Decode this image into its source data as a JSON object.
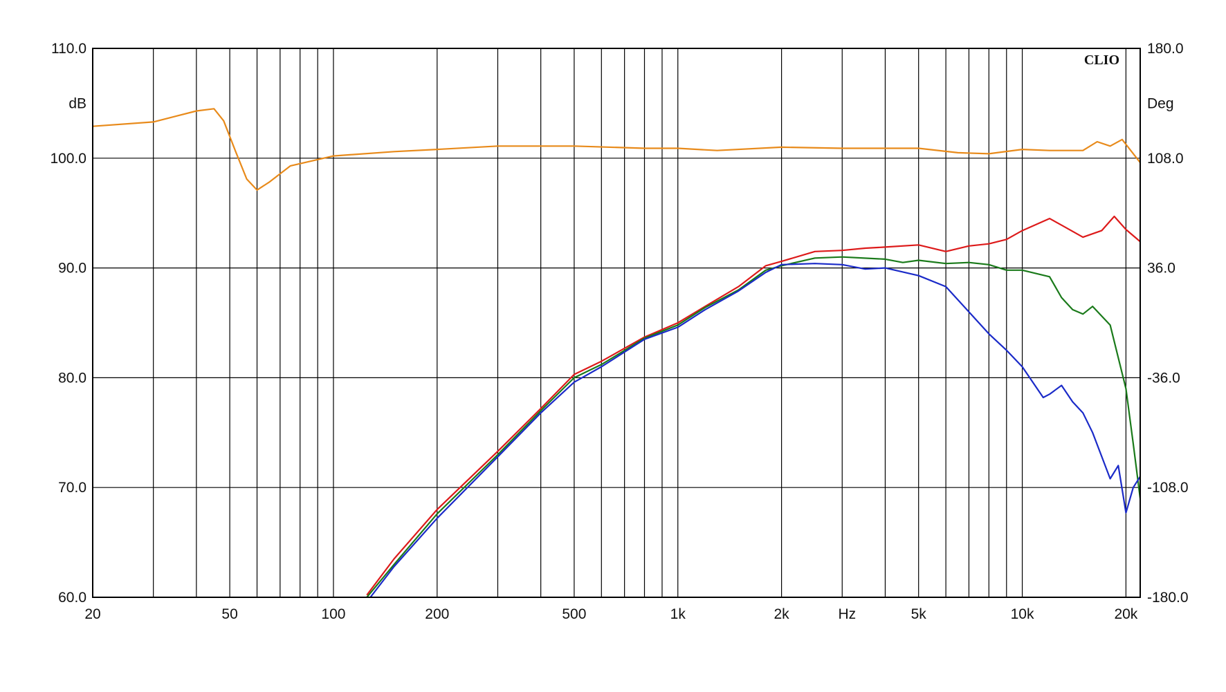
{
  "chart_data": {
    "type": "line",
    "brand": "CLIO",
    "x_scale": "log",
    "xlim": [
      20,
      22000
    ],
    "ylim_left": [
      60,
      110
    ],
    "ylim_right": [
      -180,
      180
    ],
    "left_axis_unit": "dB",
    "right_axis_unit": "Deg",
    "x_axis_unit": "Hz",
    "grid": true,
    "y_ticks_left": [
      {
        "value": 60,
        "label": "60.0"
      },
      {
        "value": 70,
        "label": "70.0"
      },
      {
        "value": 80,
        "label": "80.0"
      },
      {
        "value": 90,
        "label": "90.0"
      },
      {
        "value": 100,
        "label": "100.0"
      },
      {
        "value": 110,
        "label": "110.0"
      }
    ],
    "y_ticks_right": [
      {
        "value": -180,
        "label": "-180.0"
      },
      {
        "value": -108,
        "label": "-108.0"
      },
      {
        "value": -36,
        "label": "-36.0"
      },
      {
        "value": 36,
        "label": "36.0"
      },
      {
        "value": 108,
        "label": "108.0"
      },
      {
        "value": 180,
        "label": "180.0"
      }
    ],
    "x_ticks": [
      {
        "value": 20,
        "label": "20"
      },
      {
        "value": 50,
        "label": "50"
      },
      {
        "value": 100,
        "label": "100"
      },
      {
        "value": 200,
        "label": "200"
      },
      {
        "value": 500,
        "label": "500"
      },
      {
        "value": 1000,
        "label": "1k"
      },
      {
        "value": 2000,
        "label": "2k"
      },
      {
        "value": 5000,
        "label": "5k"
      },
      {
        "value": 10000,
        "label": "10k"
      },
      {
        "value": 20000,
        "label": "20k"
      }
    ],
    "x_grid": [
      20,
      30,
      40,
      50,
      60,
      70,
      80,
      90,
      100,
      200,
      300,
      400,
      500,
      600,
      700,
      800,
      900,
      1000,
      2000,
      3000,
      4000,
      5000,
      6000,
      7000,
      8000,
      9000,
      10000,
      20000
    ],
    "series": [
      {
        "color": "#e88a1a",
        "x": [
          20,
          30,
          40,
          45,
          48,
          52,
          56,
          60,
          65,
          75,
          100,
          150,
          200,
          300,
          400,
          500,
          800,
          1000,
          1300,
          2000,
          3000,
          5000,
          6500,
          8000,
          10000,
          12000,
          15000,
          16500,
          18000,
          19500,
          22000
        ],
        "y": [
          102.9,
          103.3,
          104.3,
          104.5,
          103.4,
          100.6,
          98.1,
          97.1,
          97.8,
          99.3,
          100.2,
          100.6,
          100.8,
          101.1,
          101.1,
          101.1,
          100.9,
          100.9,
          100.7,
          101.0,
          100.9,
          100.9,
          100.5,
          100.4,
          100.8,
          100.7,
          100.7,
          101.5,
          101.1,
          101.7,
          99.6
        ]
      },
      {
        "color": "#dd1a1a",
        "x": [
          125,
          150,
          200,
          300,
          400,
          500,
          600,
          800,
          1000,
          1200,
          1500,
          1800,
          2000,
          2500,
          3000,
          3500,
          4000,
          5000,
          6000,
          7000,
          8000,
          9000,
          10000,
          12000,
          13000,
          15000,
          17000,
          18500,
          20000,
          22000
        ],
        "y": [
          60.2,
          63.5,
          68.0,
          73.3,
          77.2,
          80.3,
          81.5,
          83.7,
          85.0,
          86.5,
          88.3,
          90.2,
          90.6,
          91.5,
          91.6,
          91.8,
          91.9,
          92.1,
          91.5,
          92.0,
          92.2,
          92.6,
          93.4,
          94.5,
          93.9,
          92.8,
          93.4,
          94.7,
          93.5,
          92.4
        ]
      },
      {
        "color": "#1a7a1a",
        "x": [
          125,
          150,
          200,
          300,
          400,
          500,
          600,
          800,
          1000,
          1200,
          1500,
          1800,
          2000,
          2500,
          3000,
          4000,
          4500,
          5000,
          6000,
          7000,
          8000,
          9000,
          10000,
          12000,
          13000,
          14000,
          15000,
          16000,
          18000,
          20000,
          21000,
          22000
        ],
        "y": [
          60.0,
          63.0,
          67.6,
          73.0,
          77.0,
          80.0,
          81.2,
          83.6,
          84.8,
          86.4,
          88.0,
          89.8,
          90.2,
          90.9,
          91.0,
          90.8,
          90.5,
          90.7,
          90.4,
          90.5,
          90.3,
          89.8,
          89.8,
          89.2,
          87.3,
          86.2,
          85.8,
          86.5,
          84.8,
          79.0,
          74.0,
          69.0
        ]
      },
      {
        "color": "#1a2ac8",
        "x": [
          128,
          150,
          200,
          300,
          400,
          500,
          600,
          800,
          1000,
          1200,
          1500,
          1800,
          2000,
          2500,
          3000,
          3500,
          4000,
          5000,
          6000,
          7000,
          8000,
          9000,
          10000,
          11500,
          12000,
          13000,
          14000,
          15000,
          16000,
          18000,
          19000,
          20000,
          21000,
          22000
        ],
        "y": [
          60.0,
          62.8,
          67.2,
          72.8,
          76.8,
          79.6,
          81.0,
          83.5,
          84.6,
          86.2,
          87.9,
          89.6,
          90.3,
          90.4,
          90.3,
          89.9,
          90.0,
          89.3,
          88.3,
          86.0,
          84.0,
          82.5,
          81.0,
          78.2,
          78.5,
          79.3,
          77.8,
          76.8,
          75.0,
          70.8,
          72.0,
          67.7,
          70.0,
          71.0
        ]
      }
    ]
  }
}
